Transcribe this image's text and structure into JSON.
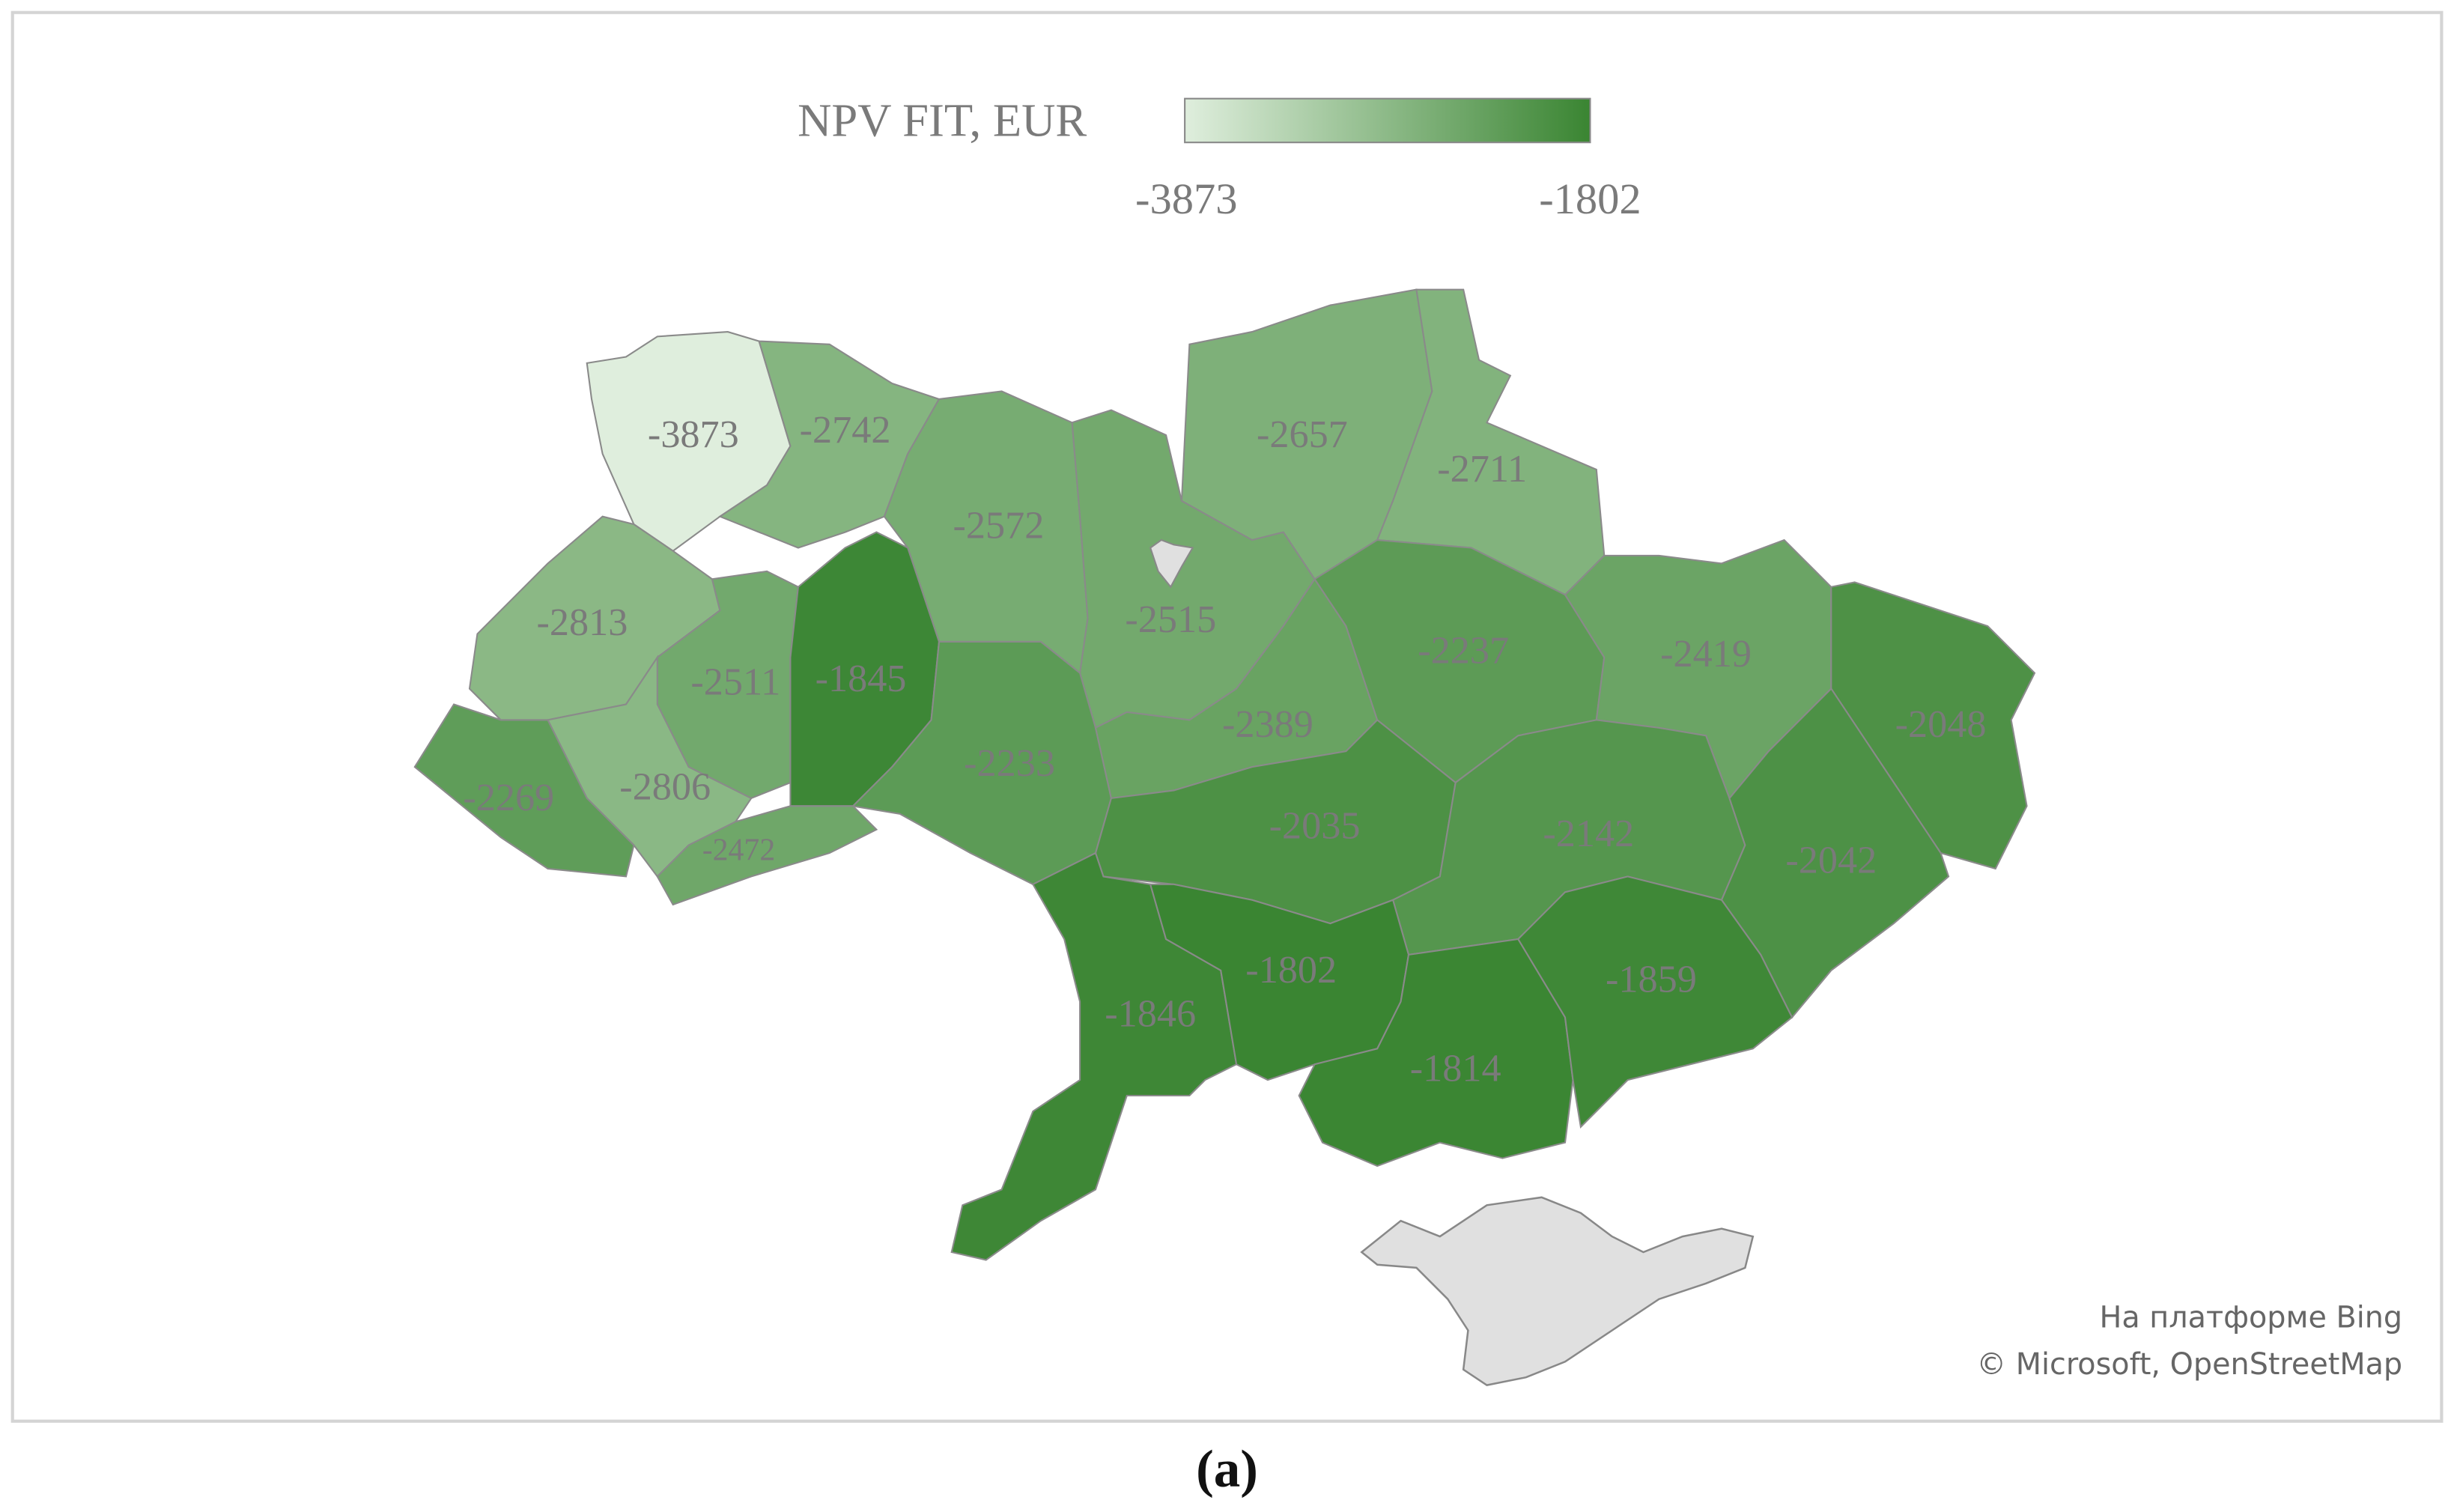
{
  "map": {
    "title": "NPV FIT, EUR",
    "legend": {
      "min": -3873,
      "max": -1802,
      "color_min": "#dfeedd",
      "color_max": "#3a8532"
    },
    "regions": [
      {
        "value": -3873
      },
      {
        "value": -2742
      },
      {
        "value": -2572
      },
      {
        "value": -2515
      },
      {
        "value": -2657
      },
      {
        "value": -2711
      },
      {
        "value": -2813
      },
      {
        "value": -2511
      },
      {
        "value": -1845
      },
      {
        "value": -2806
      },
      {
        "value": -2269
      },
      {
        "value": -2472
      },
      {
        "value": -2233
      },
      {
        "value": -2389
      },
      {
        "value": -2237
      },
      {
        "value": -2419
      },
      {
        "value": -2048
      },
      {
        "value": -2035
      },
      {
        "value": -2142
      },
      {
        "value": -2042
      },
      {
        "value": -1846
      },
      {
        "value": -1802
      },
      {
        "value": -1814
      },
      {
        "value": -1859
      }
    ]
  },
  "attribution": [
    "На платформе Bing",
    "© Microsoft, OpenStreetMap"
  ],
  "caption": "(a)"
}
